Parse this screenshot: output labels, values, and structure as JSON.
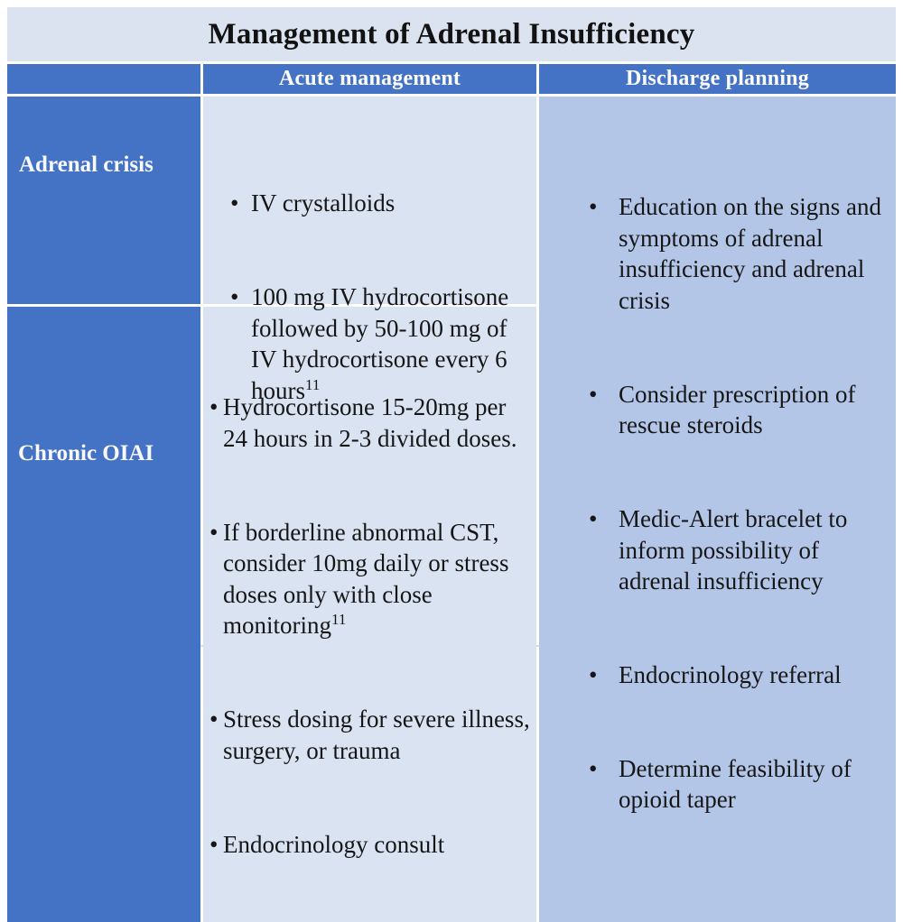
{
  "title": "Management of Adrenal Insufficiency",
  "table": {
    "headers": {
      "row_label": "",
      "acute": "Acute management",
      "discharge": "Discharge planning"
    },
    "rows": [
      {
        "label": "Adrenal crisis",
        "acute": [
          {
            "text": "IV crystalloids"
          },
          {
            "text": "100 mg IV hydrocortisone\nfollowed by 50-100 mg of\nIV hydrocortisone every 6\nhours",
            "sup": "11"
          }
        ]
      },
      {
        "label": "Chronic OIAI",
        "acute": [
          {
            "text": "Hydrocortisone 15-20mg per\n24 hours in 2-3 divided doses."
          },
          {
            "text": "If borderline abnormal CST,\nconsider 10mg daily or stress\ndoses only with close\nmonitoring",
            "sup": "11"
          },
          {
            "text": "Stress dosing for severe illness,\nsurgery, or trauma"
          },
          {
            "text": "Endocrinology consult"
          }
        ]
      }
    ],
    "discharge": [
      {
        "text": "Education on the signs and\nsymptoms of adrenal\ninsufficiency and adrenal\ncrisis"
      },
      {
        "text": "Consider prescription of\nrescue steroids"
      },
      {
        "text": "Medic-Alert bracelet to\ninform possibility of\nadrenal insufficiency"
      },
      {
        "text": "Endocrinology referral"
      },
      {
        "text": "Determine feasibility of\nopioid taper"
      }
    ]
  },
  "colors": {
    "accent_blue": "#4472c4",
    "light_cell": "#dae3f2",
    "medium_cell": "#b4c6e7",
    "title_bg": "#dce3f0",
    "text_dark": "#161616",
    "text_light": "#f8fafd"
  }
}
